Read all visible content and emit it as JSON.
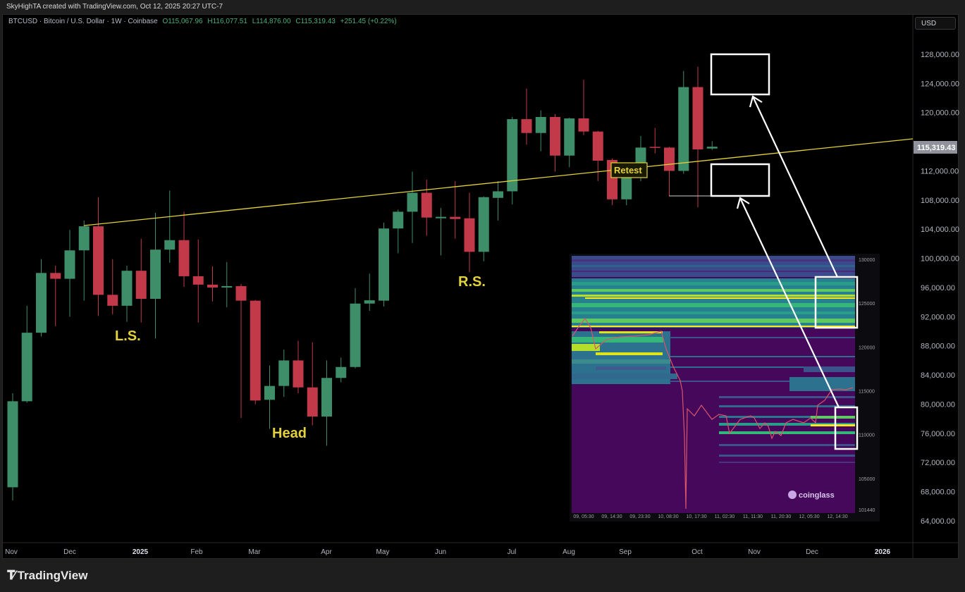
{
  "credit": "SkyHighTA created with TradingView.com, Oct 12, 2025 20:27 UTC-7",
  "legend": {
    "symbol": "BTCUSD · Bitcoin / U.S. Dollar · 1W · Coinbase",
    "open": "O115,067.96",
    "high": "H116,077.51",
    "low": "L114,876.00",
    "close": "C115,319.43",
    "change": "+251.45 (+0.22%)"
  },
  "currency_button": "USD",
  "price_tag": "115,319.43",
  "footer_brand": "TradingView",
  "colors": {
    "up": "#3e8e6a",
    "down": "#c2394a",
    "trendline": "#e3d23a",
    "annotation": "#e3d23a",
    "background": "#000000"
  },
  "annotations": {
    "left_shoulder": "L.S.",
    "head": "Head",
    "right_shoulder": "R.S.",
    "retest": "Retest"
  },
  "chart_data": {
    "type": "candlestick",
    "title": "",
    "y_axis": {
      "ticks": [
        "128,000.00",
        "124,000.00",
        "120,000.00",
        "116,000.00",
        "112,000.00",
        "108,000.00",
        "104,000.00",
        "100,000.00",
        "96,000.00",
        "92,000.00",
        "88,000.00",
        "84,000.00",
        "80,000.00",
        "76,000.00",
        "72,000.00",
        "68,000.00",
        "64,000.00"
      ],
      "range": [
        62000,
        130000
      ],
      "scale": "linear"
    },
    "x_axis": {
      "ticks": [
        "Nov",
        "Dec",
        "2025",
        "Feb",
        "Mar",
        "Apr",
        "May",
        "Jun",
        "Jul",
        "Aug",
        "Sep",
        "Oct",
        "Nov",
        "Dec",
        "2026"
      ]
    },
    "columns": [
      "open",
      "high",
      "low",
      "close"
    ],
    "candles": [
      [
        68600,
        81500,
        66800,
        80400
      ],
      [
        80400,
        93500,
        80200,
        89800
      ],
      [
        89800,
        99900,
        89300,
        98000
      ],
      [
        98000,
        99000,
        90700,
        97200
      ],
      [
        97200,
        103900,
        92000,
        101100
      ],
      [
        101100,
        105200,
        94200,
        104400
      ],
      [
        104400,
        108400,
        92100,
        95000
      ],
      [
        95000,
        99900,
        92300,
        93500
      ],
      [
        93500,
        99000,
        91300,
        98300
      ],
      [
        98300,
        102700,
        91200,
        94450
      ],
      [
        94450,
        106250,
        89000,
        101200
      ],
      [
        101200,
        109300,
        99400,
        102500
      ],
      [
        102500,
        106400,
        96100,
        97550
      ],
      [
        97550,
        102600,
        91200,
        96400
      ],
      [
        96400,
        98900,
        94100,
        96000
      ],
      [
        96000,
        99500,
        93300,
        96200
      ],
      [
        96200,
        96500,
        78100,
        94200
      ],
      [
        94200,
        94300,
        80000,
        80500
      ],
      [
        80600,
        85300,
        76600,
        82500
      ],
      [
        82500,
        87500,
        81000,
        86000
      ],
      [
        86000,
        88700,
        81500,
        82300
      ],
      [
        82300,
        88500,
        77100,
        78300
      ],
      [
        78300,
        86000,
        74300,
        83600
      ],
      [
        83600,
        86400,
        83000,
        85100
      ],
      [
        85100,
        95900,
        84900,
        93800
      ],
      [
        93800,
        97900,
        92800,
        94250
      ],
      [
        94200,
        104900,
        93400,
        104100
      ],
      [
        104100,
        106700,
        100700,
        106400
      ],
      [
        106400,
        111900,
        102100,
        109000
      ],
      [
        109000,
        110800,
        103100,
        105600
      ],
      [
        105500,
        106900,
        100400,
        105700
      ],
      [
        105700,
        110600,
        102700,
        105400
      ],
      [
        105500,
        109000,
        98100,
        100900
      ],
      [
        100900,
        108500,
        99600,
        108400
      ],
      [
        108300,
        110600,
        105200,
        109200
      ],
      [
        109200,
        119400,
        107400,
        119100
      ],
      [
        119100,
        123300,
        115600,
        117200
      ],
      [
        117200,
        120300,
        114700,
        119400
      ],
      [
        119400,
        119800,
        111900,
        114100
      ],
      [
        114100,
        119300,
        112500,
        119200
      ],
      [
        119200,
        124500,
        116900,
        117400
      ],
      [
        117400,
        117500,
        110600,
        113400
      ],
      [
        113500,
        113700,
        107300,
        108100
      ],
      [
        108100,
        112600,
        107300,
        111200
      ],
      [
        111200,
        116800,
        110600,
        115200
      ],
      [
        115300,
        117900,
        114400,
        115200
      ],
      [
        115200,
        115300,
        108600,
        112000
      ],
      [
        112000,
        125700,
        111600,
        123500
      ],
      [
        123500,
        126300,
        107000,
        114950
      ],
      [
        115067.96,
        116077.51,
        114876.0,
        115319.43
      ]
    ],
    "trendline": {
      "label": "",
      "from_price": 104500,
      "to_price": 116400
    }
  },
  "inset": {
    "brand": "coinglass",
    "y_ticks": [
      "130000",
      "125000",
      "120000",
      "115000",
      "110000",
      "105000",
      "101440"
    ],
    "x_ticks": [
      "09, 05:30",
      "09, 14:30",
      "09, 23:30",
      "10, 08:30",
      "10, 17:30",
      "11, 02:30",
      "11, 11:30",
      "11, 20:30",
      "12, 05:30",
      "12, 14:30"
    ]
  }
}
